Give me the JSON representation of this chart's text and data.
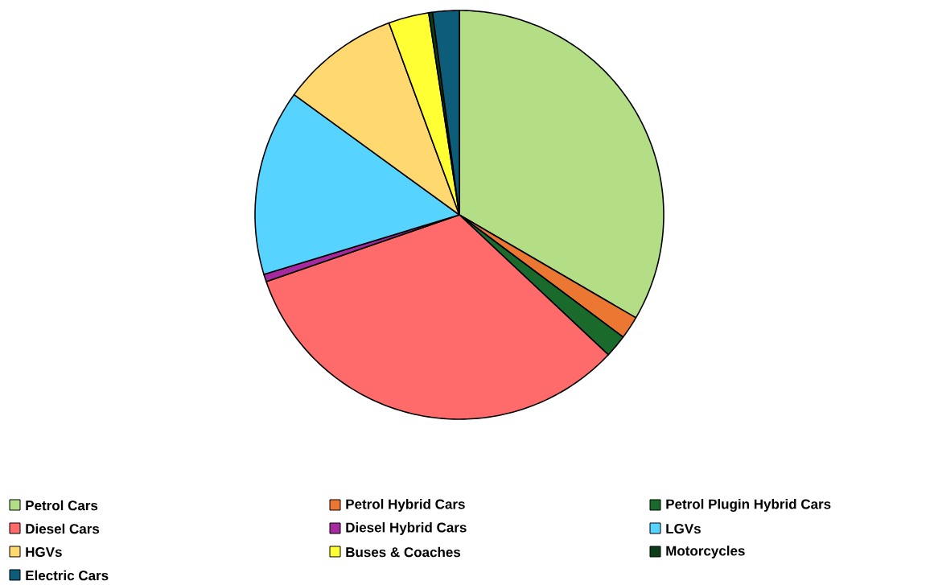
{
  "chart_data": {
    "type": "pie",
    "categories": [
      "Petrol Cars",
      "Petrol Hybrid Cars",
      "Petrol Plugin Hybrid Cars",
      "Diesel Cars",
      "Diesel Hybrid Cars",
      "LGVs",
      "HGVs",
      "Buses & Coaches",
      "Motorcycles",
      "Electric Cars"
    ],
    "values": [
      33.4,
      1.8,
      1.8,
      32.7,
      0.6,
      14.7,
      9.4,
      3.2,
      0.3,
      2.1
    ],
    "colors": [
      "#b3de85",
      "#eb7733",
      "#1a6b2b",
      "#ff6b6b",
      "#a52a9e",
      "#57d3ff",
      "#ffd970",
      "#ffff33",
      "#0d3d17",
      "#0d5c7a"
    ],
    "legend": "bottom"
  }
}
